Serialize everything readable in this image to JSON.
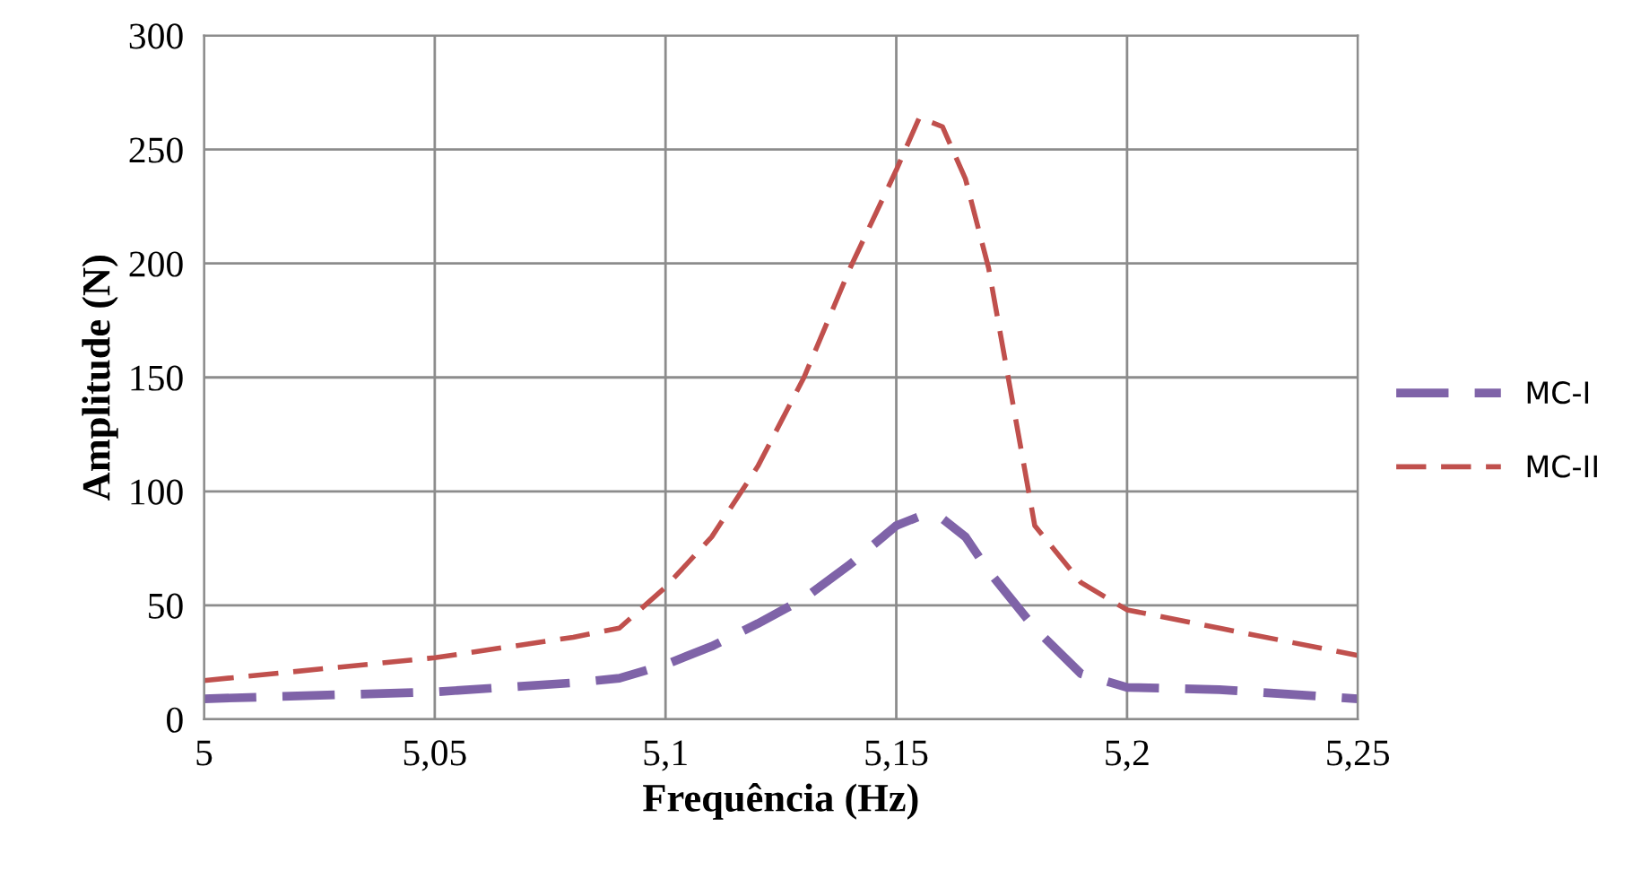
{
  "chart_data": {
    "type": "line",
    "xlabel": "Frequência (Hz)",
    "ylabel": "Amplitude (N)",
    "xlim": [
      5,
      5.25
    ],
    "xticks": [
      {
        "value": 5,
        "label": "5"
      },
      {
        "value": 5.05,
        "label": "5,05"
      },
      {
        "value": 5.1,
        "label": "5,1"
      },
      {
        "value": 5.15,
        "label": "5,15"
      },
      {
        "value": 5.2,
        "label": "5,2"
      },
      {
        "value": 5.25,
        "label": "5,25"
      }
    ],
    "ylim": [
      0,
      300
    ],
    "yticks": [
      0,
      50,
      100,
      150,
      200,
      250,
      300
    ],
    "grid": true,
    "legend": "right",
    "line_style": "dashed",
    "marker": "none",
    "x": [
      5.0,
      5.05,
      5.08,
      5.09,
      5.1,
      5.11,
      5.12,
      5.13,
      5.14,
      5.15,
      5.155,
      5.16,
      5.165,
      5.17,
      5.18,
      5.19,
      5.2,
      5.22,
      5.25
    ],
    "series": [
      {
        "name": "MC-I",
        "color": "#7f63a8",
        "values": [
          9,
          12,
          16,
          18,
          24,
          32,
          42,
          53,
          68,
          85,
          89,
          88,
          80,
          65,
          40,
          20,
          14,
          13,
          9
        ]
      },
      {
        "name": "MC-II",
        "color": "#c0504d",
        "values": [
          17,
          27,
          36,
          40,
          58,
          80,
          111,
          150,
          198,
          241,
          264,
          260,
          237,
          198,
          85,
          60,
          48,
          40,
          28
        ]
      }
    ]
  }
}
